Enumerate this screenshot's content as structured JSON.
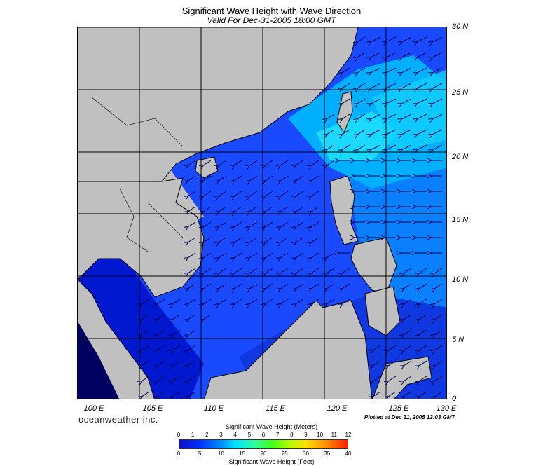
{
  "title": "Significant Wave Height with Wave Direction",
  "subtitle": "Valid For Dec-31-2005 18:00 GMT",
  "lat_labels": [
    "30 N",
    "25 N",
    "20 N",
    "15 N",
    "10 N",
    "5 N",
    "0"
  ],
  "lon_labels": [
    "100 E",
    "105 E",
    "110 E",
    "115 E",
    "120 E",
    "125 E",
    "130 E"
  ],
  "brand": "oceanweather inc.",
  "plotted": "Plotted at Dec 31, 2005 12:03 GMT",
  "legend": {
    "meters_title": "Significant Wave Height (Meters)",
    "feet_title": "Significant Wave Height (Feet)",
    "meters_ticks": [
      "0",
      "1",
      "2",
      "3",
      "4",
      "5",
      "6",
      "7",
      "8",
      "9",
      "10",
      "11",
      "12"
    ],
    "feet_ticks": [
      "0",
      "5",
      "10",
      "15",
      "20",
      "25",
      "30",
      "35",
      "40"
    ]
  },
  "colors": {
    "land": "#c0c0c0",
    "deep_blue": "#0000c8",
    "blue": "#1e50ff",
    "light_blue": "#00b4ff",
    "cyan": "#20f0ff"
  }
}
